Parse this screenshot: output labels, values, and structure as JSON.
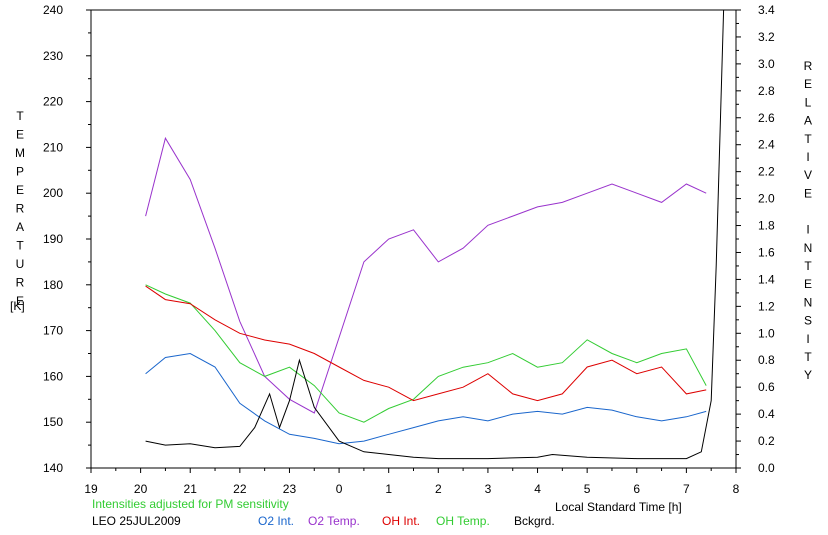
{
  "chart_data": {
    "type": "line",
    "xlabel": "Local Standard Time [h]",
    "ylabel_left": "TEMPERATURE",
    "ylabel_left_unit": "[K]",
    "ylabel_right": "RELATIVE INTENSITY",
    "x_ticks": [
      "19",
      "20",
      "21",
      "22",
      "23",
      "0",
      "1",
      "2",
      "3",
      "4",
      "5",
      "6",
      "7",
      "8"
    ],
    "xlim": [
      19,
      8
    ],
    "ylim_left": [
      140,
      240
    ],
    "ylim_right": [
      0,
      3.4
    ],
    "y_ticks_left": [
      "140",
      "150",
      "160",
      "170",
      "180",
      "190",
      "200",
      "210",
      "220",
      "230",
      "240"
    ],
    "y_ticks_right": [
      "0.0",
      "0.2",
      "0.4",
      "0.6",
      "0.8",
      "1.0",
      "1.2",
      "1.4",
      "1.6",
      "1.8",
      "2.0",
      "2.2",
      "2.4",
      "2.6",
      "2.8",
      "3.0",
      "3.2",
      "3.4"
    ],
    "grid": false,
    "note": "Intensities adjusted for PM sensitivity",
    "station": "LEO 25JUL2009",
    "legend": [
      "O2 Int.",
      "O2 Temp.",
      "OH Int.",
      "OH Temp.",
      "Bckgrd."
    ],
    "series": [
      {
        "name": "O2 Temp.",
        "axis": "left",
        "color": "#9933cc",
        "x": [
          20.1,
          20.5,
          21.0,
          21.5,
          22.0,
          22.5,
          23.0,
          23.5,
          0.5,
          1.0,
          1.5,
          2.0,
          2.5,
          3.0,
          3.5,
          4.0,
          4.5,
          5.0,
          5.5,
          6.0,
          6.5,
          7.0,
          7.4
        ],
        "y": [
          195,
          212,
          203,
          188,
          172,
          160,
          155,
          152,
          185,
          190,
          192,
          185,
          188,
          193,
          195,
          197,
          198,
          200,
          202,
          200,
          198,
          202,
          200
        ]
      },
      {
        "name": "OH Temp.",
        "axis": "left",
        "color": "#33cc33",
        "x": [
          20.1,
          20.5,
          21.0,
          21.5,
          22.0,
          22.5,
          23.0,
          23.5,
          0.0,
          0.5,
          1.0,
          1.5,
          2.0,
          2.5,
          3.0,
          3.5,
          4.0,
          4.5,
          5.0,
          5.5,
          6.0,
          6.5,
          7.0,
          7.4
        ],
        "y": [
          180,
          178,
          176,
          170,
          163,
          160,
          162,
          158,
          152,
          150,
          153,
          155,
          160,
          162,
          163,
          165,
          162,
          163,
          168,
          165,
          163,
          165,
          166,
          158
        ]
      },
      {
        "name": "OH Int.",
        "axis": "right",
        "color": "#dd0000",
        "x": [
          20.1,
          20.5,
          21.0,
          21.5,
          22.0,
          22.5,
          23.0,
          23.5,
          0.0,
          0.5,
          1.0,
          1.5,
          2.0,
          2.5,
          3.0,
          3.5,
          4.0,
          4.5,
          5.0,
          5.5,
          6.0,
          6.5,
          7.0,
          7.4
        ],
        "y": [
          1.35,
          1.25,
          1.22,
          1.1,
          1.0,
          0.95,
          0.92,
          0.85,
          0.75,
          0.65,
          0.6,
          0.5,
          0.55,
          0.6,
          0.7,
          0.55,
          0.5,
          0.55,
          0.75,
          0.8,
          0.7,
          0.75,
          0.55,
          0.58
        ]
      },
      {
        "name": "O2 Int.",
        "axis": "right",
        "color": "#1a66cc",
        "x": [
          20.1,
          20.5,
          21.0,
          21.5,
          22.0,
          22.5,
          23.0,
          23.5,
          0.0,
          0.5,
          1.0,
          1.5,
          2.0,
          2.5,
          3.0,
          3.5,
          4.0,
          4.5,
          5.0,
          5.5,
          6.0,
          6.5,
          7.0,
          7.4
        ],
        "y": [
          0.7,
          0.82,
          0.85,
          0.75,
          0.48,
          0.35,
          0.25,
          0.22,
          0.18,
          0.2,
          0.25,
          0.3,
          0.35,
          0.38,
          0.35,
          0.4,
          0.42,
          0.4,
          0.45,
          0.43,
          0.38,
          0.35,
          0.38,
          0.42
        ]
      },
      {
        "name": "Bckgrd.",
        "axis": "right",
        "color": "#000000",
        "x": [
          20.1,
          20.5,
          21.0,
          21.5,
          22.0,
          22.3,
          22.6,
          22.8,
          23.0,
          23.2,
          23.5,
          0.0,
          0.5,
          1.0,
          1.5,
          2.0,
          3.0,
          4.0,
          4.3,
          5.0,
          6.0,
          7.0,
          7.3,
          7.5,
          7.6,
          7.75
        ],
        "y": [
          0.2,
          0.17,
          0.18,
          0.15,
          0.16,
          0.3,
          0.55,
          0.3,
          0.5,
          0.8,
          0.45,
          0.2,
          0.12,
          0.1,
          0.08,
          0.07,
          0.07,
          0.08,
          0.1,
          0.08,
          0.07,
          0.07,
          0.12,
          0.5,
          1.5,
          3.4
        ]
      }
    ]
  }
}
